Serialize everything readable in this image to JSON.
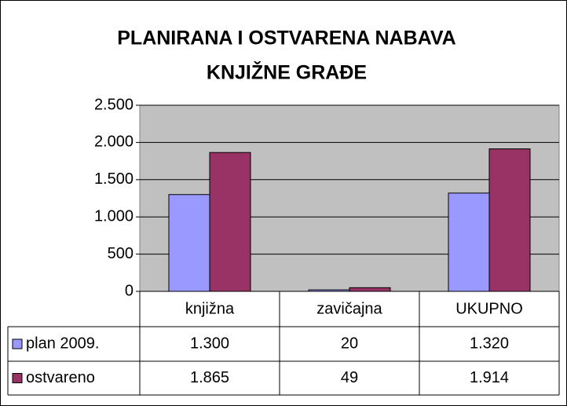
{
  "chart_data": {
    "type": "bar",
    "title": [
      "PLANIRANA I OSTVARENA NABAVA",
      "KNJIŽNE GRAĐE"
    ],
    "categories": [
      "knjižna",
      "zavičajna",
      "UKUPNO"
    ],
    "series": [
      {
        "name": "plan 2009.",
        "color": "#9999ff",
        "values": [
          1300,
          20,
          1320
        ],
        "value_labels": [
          "1.300",
          "20",
          "1.320"
        ]
      },
      {
        "name": "ostvareno",
        "color": "#993366",
        "values": [
          1865,
          49,
          1914
        ],
        "value_labels": [
          "1.865",
          "49",
          "1.914"
        ]
      }
    ],
    "ylim": [
      0,
      2500
    ],
    "yticks": [
      0,
      500,
      {
        "value": 1000,
        "label": "1.000"
      },
      {
        "value": 1500,
        "label": "1.500"
      },
      {
        "value": 2000,
        "label": "2.000"
      },
      {
        "value": 2500,
        "label": "2.500"
      }
    ],
    "grid": true,
    "plot_background": "#c0c0c0"
  }
}
